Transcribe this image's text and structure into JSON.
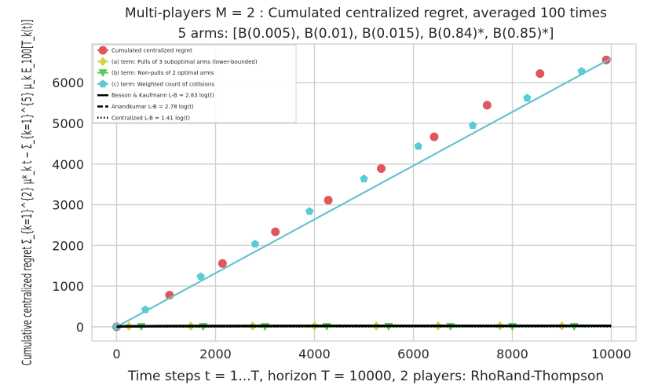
{
  "chart_data": {
    "type": "line",
    "title_line1": "Multi-players M = 2 : Cumulated centralized regret, averaged 100 times",
    "title_line2": "5 arms: [B(0.005), B(0.01), B(0.015), B(0.84)*, B(0.85)*]",
    "xlabel": "Time steps t = 1...T, horizon T = 10000, 2 players: RhoRand-Thompson",
    "ylabel": "Cumulative centralized regret  Σ_{k=1}^{2} μ*_k t − Σ_{k=1}^{5} μ_k E_100[T_k(t)]",
    "xlim": [
      -500,
      10500
    ],
    "ylim": [
      -350,
      6950
    ],
    "xticks": [
      0,
      2000,
      4000,
      6000,
      8000,
      10000
    ],
    "yticks": [
      0,
      1000,
      2000,
      3000,
      4000,
      5000,
      6000
    ],
    "grid": true,
    "legend_position": "top-left",
    "series": [
      {
        "name": "Cumulated centralized regret",
        "color": "#e15759",
        "marker": "circle",
        "x": [
          0,
          1070,
          2140,
          3210,
          4280,
          5350,
          6420,
          7490,
          8560,
          9900
        ],
        "y": [
          0,
          778,
          1556,
          2334,
          3112,
          3890,
          4668,
          5446,
          6224,
          6560
        ]
      },
      {
        "name": "(a) term: Pulls of 3 suboptimal arms (lower-bounded)",
        "color": "#d4d44a",
        "marker": "diamond",
        "x": [
          250,
          1500,
          2750,
          4000,
          5250,
          6500,
          7750,
          9000
        ],
        "y": [
          15,
          18,
          20,
          20,
          21,
          21,
          22,
          22
        ]
      },
      {
        "name": "(b) term: Non-pulls of 2 optimal arms",
        "color": "#59c959",
        "marker": "triangle-down",
        "x": [
          500,
          1750,
          3000,
          4250,
          5500,
          6750,
          8000,
          9250
        ],
        "y": [
          5,
          6,
          6,
          7,
          7,
          7,
          7,
          7
        ]
      },
      {
        "name": "(c) term: Weighted count of collisions",
        "color": "#5bcad6",
        "marker": "pentagon",
        "x": [
          0,
          580,
          1700,
          2800,
          3900,
          5000,
          6100,
          7200,
          8300,
          9400
        ],
        "y": [
          0,
          421,
          1236,
          2036,
          2837,
          3637,
          4437,
          4950,
          5623,
          6280
        ]
      },
      {
        "name": "Besson & Kaufmann L-B = 2.83 log(t)",
        "color": "#000000",
        "style": "solid",
        "x": [
          1,
          100,
          1000,
          2500,
          5000,
          7500,
          10000
        ],
        "y": [
          0,
          13,
          19.5,
          22.1,
          24.1,
          25.2,
          26.1
        ]
      },
      {
        "name": "Anandkumar L-B = 2.78 log(t)",
        "color": "#000000",
        "style": "dashed",
        "x": [
          1,
          100,
          1000,
          2500,
          5000,
          7500,
          10000
        ],
        "y": [
          0,
          12.8,
          19.2,
          21.7,
          23.7,
          24.8,
          25.6
        ]
      },
      {
        "name": "Centralized L-B = 1.41 log(t)",
        "color": "#000000",
        "style": "dotted",
        "x": [
          1,
          100,
          1000,
          2500,
          5000,
          7500,
          10000
        ],
        "y": [
          0,
          6.5,
          9.7,
          11,
          12,
          12.6,
          13
        ]
      }
    ]
  }
}
